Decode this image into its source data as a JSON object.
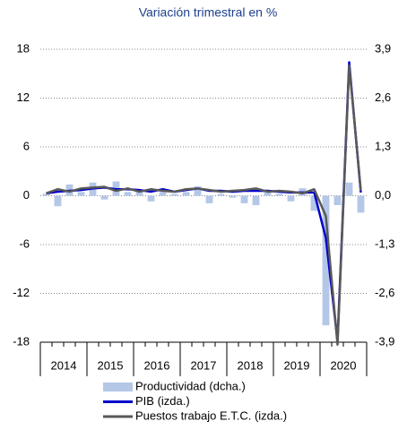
{
  "chart_data": {
    "type": "combo",
    "title": "Variación trimestral en %",
    "categories": [
      null,
      null,
      null,
      null,
      null,
      null,
      null,
      null,
      null,
      null,
      null,
      null,
      null,
      null,
      null,
      null,
      null,
      null,
      null,
      null,
      null,
      null,
      null,
      null,
      null,
      null,
      null,
      null
    ],
    "xlabels": [
      "2014",
      "2015",
      "2016",
      "2017",
      "2018",
      "2019",
      "2020"
    ],
    "ylim": [
      -18,
      18
    ],
    "yticks": [
      18,
      12,
      6,
      0,
      -6,
      -12,
      -18
    ],
    "y2lim": [
      -3.9,
      3.9
    ],
    "y2ticks": [
      {
        "value": 3.9,
        "label": "3,9"
      },
      {
        "value": 2.6,
        "label": "2,6"
      },
      {
        "value": 1.3,
        "label": "1,3"
      },
      {
        "value": 0.0,
        "label": "0,0"
      },
      {
        "value": -1.3,
        "label": "-1,3"
      },
      {
        "value": -2.6,
        "label": "-2,6"
      },
      {
        "value": -3.9,
        "label": "-3,9"
      }
    ],
    "grid": true,
    "series": [
      {
        "name": "Productividad (dcha.)",
        "kind": "bar",
        "axis": "y2",
        "color": "#b4c7e7",
        "values": [
          0.05,
          -0.28,
          0.3,
          0.1,
          0.35,
          -0.1,
          0.38,
          0.1,
          0.15,
          -0.15,
          0.1,
          0.05,
          0.1,
          0.25,
          -0.2,
          0.05,
          -0.05,
          -0.2,
          -0.25,
          0.1,
          0.05,
          -0.15,
          0.2,
          -0.4,
          -3.45,
          -0.25,
          0.35,
          -0.45
        ]
      },
      {
        "name": "PIB (izda.)",
        "kind": "line",
        "color": "#0000cc",
        "values": [
          0.3,
          0.5,
          0.6,
          0.7,
          0.9,
          1.0,
          0.8,
          0.8,
          0.7,
          0.5,
          0.8,
          0.5,
          0.7,
          0.9,
          0.6,
          0.6,
          0.5,
          0.6,
          0.6,
          0.6,
          0.5,
          0.4,
          0.4,
          0.4,
          -5.2,
          -17.8,
          16.4,
          0.4
        ]
      },
      {
        "name": "Puestos trabajo E.T.C. (izda.)",
        "kind": "line",
        "color": "#595959",
        "values": [
          0.3,
          0.8,
          0.5,
          0.9,
          1.0,
          1.1,
          0.6,
          0.9,
          0.5,
          0.8,
          0.6,
          0.5,
          0.8,
          0.9,
          0.7,
          0.5,
          0.6,
          0.7,
          0.9,
          0.5,
          0.6,
          0.5,
          0.3,
          0.8,
          -2.5,
          -18.3,
          16.0,
          0.6
        ]
      }
    ]
  }
}
